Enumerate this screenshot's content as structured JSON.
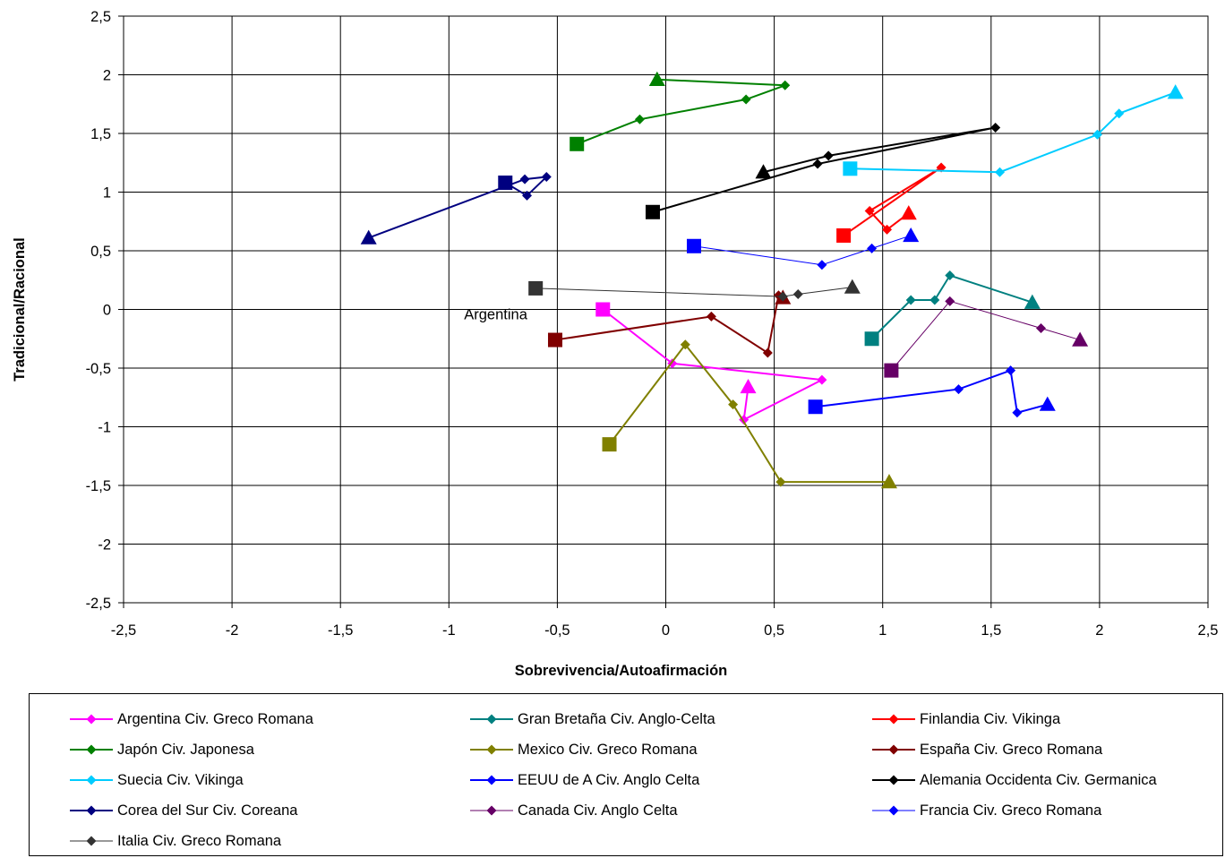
{
  "chart_data": {
    "type": "line",
    "xlabel": "Sobrevivencia/Autoafirmación",
    "ylabel": "Tradicional/Racional",
    "xlim": [
      -2.5,
      2.5
    ],
    "ylim": [
      -2.5,
      2.5
    ],
    "xticks": [
      "-2,5",
      "-2",
      "-1,5",
      "-1",
      "-0,5",
      "0",
      "0,5",
      "1",
      "1,5",
      "2",
      "2,5"
    ],
    "yticks": [
      "2,5",
      "2",
      "1,5",
      "1",
      "0,5",
      "0",
      "-0,5",
      "-1",
      "-1,5",
      "-2",
      "-2,5"
    ],
    "grid": true,
    "legend_position": "bottom",
    "annotations": [
      {
        "text": "Argentina",
        "x": -0.93,
        "y": -0.04
      }
    ],
    "series": [
      {
        "name": "Argentina Civ. Greco Romana",
        "color": "#ff00ff",
        "width": 2,
        "points": [
          [
            -0.29,
            0.0
          ],
          [
            0.03,
            -0.46
          ],
          [
            0.72,
            -0.6
          ],
          [
            0.36,
            -0.94
          ],
          [
            0.38,
            -0.66
          ]
        ]
      },
      {
        "name": "Gran Bretaña Civ. Anglo-Celta",
        "color": "#008080",
        "width": 2,
        "points": [
          [
            0.95,
            -0.25
          ],
          [
            1.13,
            0.08
          ],
          [
            1.24,
            0.08
          ],
          [
            1.31,
            0.29
          ],
          [
            1.69,
            0.06
          ]
        ]
      },
      {
        "name": "Finlandia Civ. Vikinga",
        "color": "#ff0000",
        "width": 2,
        "points": [
          [
            0.82,
            0.63
          ],
          [
            1.27,
            1.21
          ],
          [
            0.94,
            0.84
          ],
          [
            1.02,
            0.68
          ],
          [
            1.12,
            0.82
          ]
        ]
      },
      {
        "name": "Japón Civ. Japonesa",
        "color": "#008000",
        "width": 2,
        "points": [
          [
            -0.41,
            1.41
          ],
          [
            -0.12,
            1.62
          ],
          [
            0.37,
            1.79
          ],
          [
            0.55,
            1.91
          ],
          [
            -0.04,
            1.96
          ]
        ]
      },
      {
        "name": "Mexico Civ. Greco Romana",
        "color": "#808000",
        "width": 2,
        "points": [
          [
            -0.26,
            -1.15
          ],
          [
            0.09,
            -0.3
          ],
          [
            0.31,
            -0.81
          ],
          [
            0.53,
            -1.47
          ],
          [
            1.03,
            -1.47
          ]
        ]
      },
      {
        "name": "España Civ. Greco Romana",
        "color": "#800000",
        "width": 2,
        "points": [
          [
            -0.51,
            -0.26
          ],
          [
            0.21,
            -0.06
          ],
          [
            0.47,
            -0.37
          ],
          [
            0.52,
            0.12
          ],
          [
            0.54,
            0.1
          ]
        ]
      },
      {
        "name": "Suecia Civ. Vikinga",
        "color": "#00ccff",
        "width": 2,
        "points": [
          [
            0.85,
            1.2
          ],
          [
            1.54,
            1.17
          ],
          [
            1.99,
            1.49
          ],
          [
            2.09,
            1.67
          ],
          [
            2.35,
            1.85
          ]
        ]
      },
      {
        "name": "EEUU de A Civ. Anglo Celta",
        "color": "#0000ff",
        "width": 2,
        "points": [
          [
            0.69,
            -0.83
          ],
          [
            1.35,
            -0.68
          ],
          [
            1.59,
            -0.52
          ],
          [
            1.62,
            -0.88
          ],
          [
            1.76,
            -0.81
          ]
        ]
      },
      {
        "name": "Alemania Occidenta Civ. Germanica",
        "color": "#000000",
        "width": 2,
        "points": [
          [
            -0.06,
            0.83
          ],
          [
            0.7,
            1.24
          ],
          [
            1.52,
            1.55
          ],
          [
            0.75,
            1.31
          ],
          [
            0.45,
            1.17
          ]
        ]
      },
      {
        "name": "Corea del Sur Civ. Coreana",
        "color": "#000080",
        "width": 2,
        "points": [
          [
            -0.74,
            1.08
          ],
          [
            -0.64,
            0.97
          ],
          [
            -0.55,
            1.13
          ],
          [
            -0.65,
            1.11
          ],
          [
            -1.37,
            0.61
          ]
        ]
      },
      {
        "name": "Canada Civ. Anglo Celta",
        "color": "#660066",
        "width": 1,
        "points": [
          [
            1.04,
            -0.52
          ],
          [
            1.31,
            0.07
          ],
          [
            1.73,
            -0.16
          ],
          [
            1.91,
            -0.26
          ]
        ]
      },
      {
        "name": "Francia Civ. Greco Romana",
        "color": "#0000ff",
        "width": 1,
        "points": [
          [
            0.13,
            0.54
          ],
          [
            0.72,
            0.38
          ],
          [
            0.95,
            0.52
          ],
          [
            1.13,
            0.63
          ]
        ]
      },
      {
        "name": "Italia Civ. Greco Romana",
        "color": "#333333",
        "width": 1,
        "points": [
          [
            -0.6,
            0.18
          ],
          [
            0.54,
            0.11
          ],
          [
            0.61,
            0.13
          ],
          [
            0.86,
            0.19
          ]
        ]
      }
    ]
  }
}
